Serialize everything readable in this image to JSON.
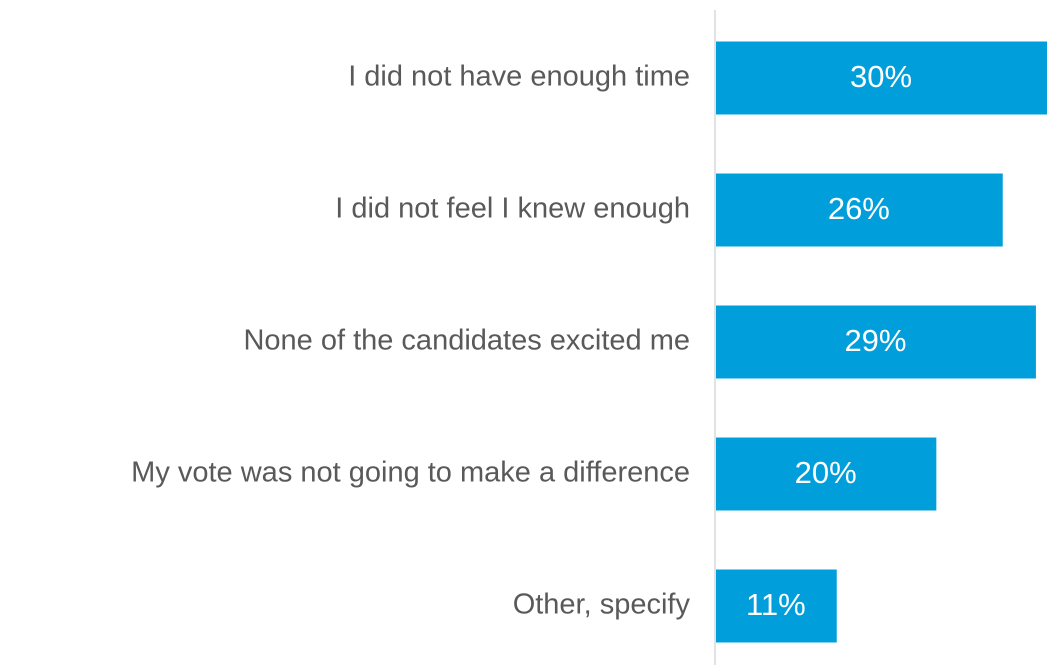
{
  "chart_data": {
    "type": "hbar",
    "categories": [
      "I did not have enough time",
      "I did not feel I knew enough",
      "None of the candidates excited me",
      "My vote was not going to make a difference",
      "Other, specify"
    ],
    "values": [
      30,
      26,
      29,
      20,
      11
    ],
    "value_labels": [
      "30%",
      "26%",
      "29%",
      "20%",
      "11%"
    ],
    "color": "#009fdb"
  }
}
